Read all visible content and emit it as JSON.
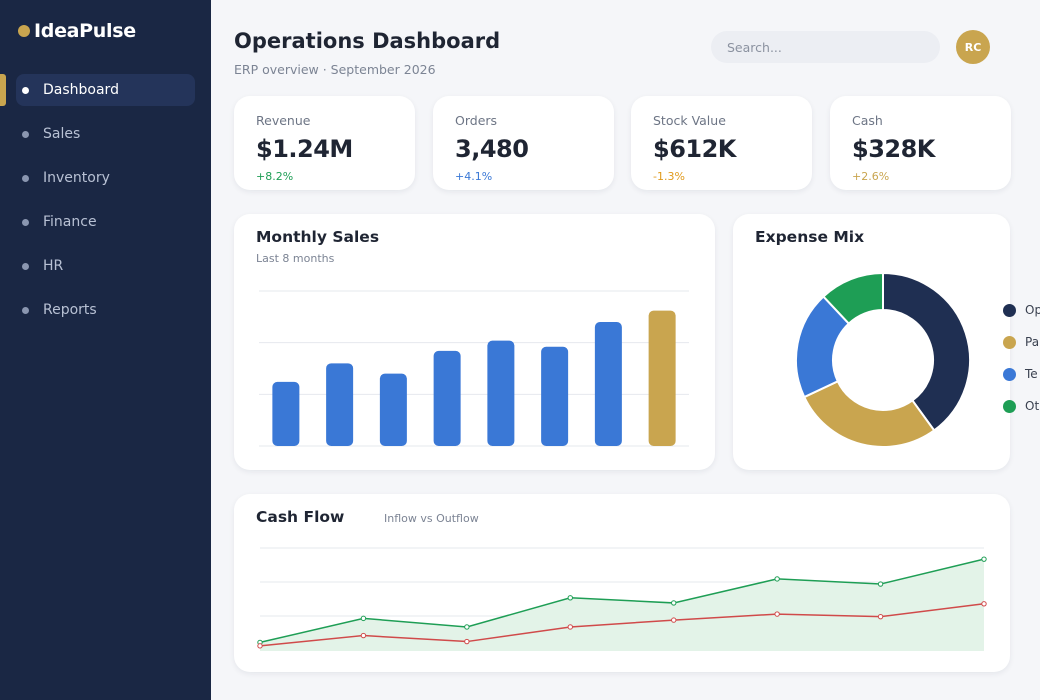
{
  "app": {
    "name": "IdeaPulse",
    "accent": "#c9a54f",
    "sidebar_bg": "#1a2744"
  },
  "sidebar": {
    "items": [
      {
        "label": "Dashboard",
        "active": true
      },
      {
        "label": "Sales"
      },
      {
        "label": "Inventory"
      },
      {
        "label": "Finance"
      },
      {
        "label": "HR"
      },
      {
        "label": "Reports"
      }
    ]
  },
  "header": {
    "title": "Operations Dashboard",
    "subtitle": "ERP overview · September 2026",
    "search_placeholder": "Search...",
    "avatar_initials": "RC"
  },
  "kpis": [
    {
      "label": "Revenue",
      "value": "$1.24M",
      "delta": "+8.2%",
      "delta_color": "#1e9e55"
    },
    {
      "label": "Orders",
      "value": "3,480",
      "delta": "+4.1%",
      "delta_color": "#3a78d6"
    },
    {
      "label": "Stock Value",
      "value": "$612K",
      "delta": "-1.3%",
      "delta_color": "#e09a1c"
    },
    {
      "label": "Cash",
      "value": "$328K",
      "delta": "+2.6%",
      "delta_color": "#c9a54f"
    }
  ],
  "monthly_sales": {
    "title": "Monthly Sales",
    "subtitle": "Last 8 months"
  },
  "expense_mix": {
    "title": "Expense Mix",
    "legend": [
      {
        "label": "Op",
        "color": "#1f2f52"
      },
      {
        "label": "Pa",
        "color": "#c9a54f"
      },
      {
        "label": "Te",
        "color": "#3a78d6"
      },
      {
        "label": "Ot",
        "color": "#1e9e55"
      }
    ]
  },
  "cash_flow": {
    "title": "Cash Flow",
    "subtitle": "Inflow vs Outflow"
  },
  "chart_data": [
    {
      "type": "bar",
      "title": "Monthly Sales",
      "subtitle": "Last 8 months",
      "values": [
        62,
        80,
        70,
        92,
        102,
        96,
        120,
        131
      ],
      "ylim": [
        0,
        150
      ],
      "grid": true,
      "colors": {
        "default": "#3a78d6",
        "highlight": "#c9a54f"
      }
    },
    {
      "type": "pie",
      "title": "Expense Mix",
      "donut": true,
      "slices": [
        {
          "label": "Op",
          "value": 40,
          "color": "#1f2f52"
        },
        {
          "label": "Pa",
          "value": 28,
          "color": "#c9a54f"
        },
        {
          "label": "Te",
          "value": 20,
          "color": "#3a78d6"
        },
        {
          "label": "Ot",
          "value": 12,
          "color": "#1e9e55"
        }
      ]
    },
    {
      "type": "area",
      "title": "Cash Flow",
      "subtitle": "Inflow vs Outflow",
      "ylim": [
        0,
        120
      ],
      "grid": true,
      "series": [
        {
          "name": "Inflow",
          "values": [
            10,
            38,
            28,
            62,
            56,
            84,
            78,
            107
          ],
          "color": "#1e9e55",
          "fill": true
        },
        {
          "name": "Outflow",
          "values": [
            6,
            18,
            11,
            28,
            36,
            43,
            40,
            55
          ],
          "color": "#d04a4a"
        }
      ]
    }
  ]
}
